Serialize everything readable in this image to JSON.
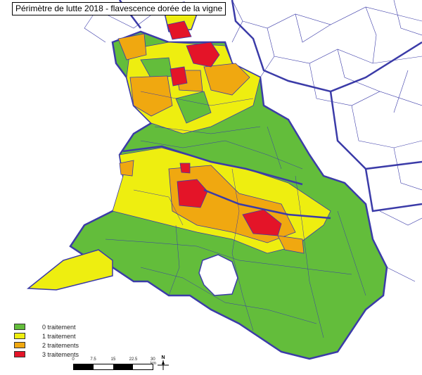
{
  "title": "Périmètre de lutte 2018 - flavescence dorée de la vigne",
  "colors": {
    "border": "#3b3ba8",
    "commune_line": "#3b3ba8",
    "water": "#ffffff"
  },
  "legend": [
    {
      "label": "0 traitement",
      "color": "#63bd3b"
    },
    {
      "label": "1 traitement",
      "color": "#eeee10"
    },
    {
      "label": "2 traitements",
      "color": "#f0a810"
    },
    {
      "label": "3 traitements",
      "color": "#e41428"
    }
  ],
  "scale": {
    "ticks": [
      "0",
      "7.5",
      "15",
      "22.5",
      "30 km"
    ]
  },
  "north": {
    "label": "N",
    "icon": "north-arrow-icon"
  }
}
